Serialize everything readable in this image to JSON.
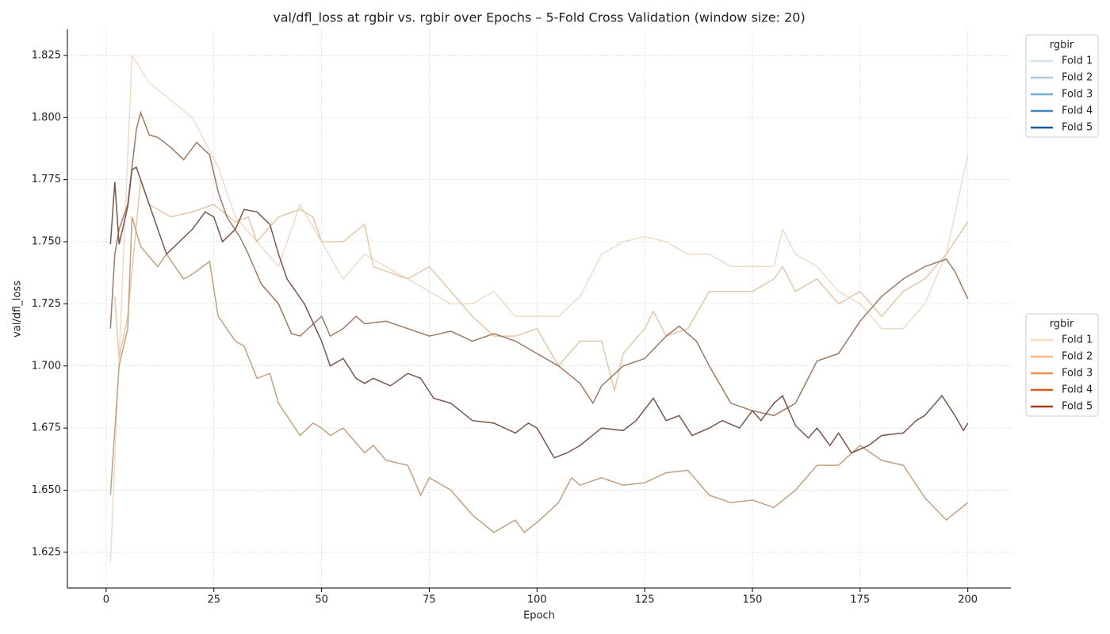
{
  "chart_data": {
    "type": "line",
    "title": "val/dfl_loss at rgbir vs. rgbir over Epochs – 5-Fold Cross Validation (window size: 20)",
    "x_label": "Epoch",
    "y_label": "val/dfl_loss",
    "xlim": [
      -9,
      210
    ],
    "ylim": [
      1.6106,
      1.8355
    ],
    "xticks": [
      0,
      25,
      50,
      75,
      100,
      125,
      150,
      175,
      200
    ],
    "yticks": [
      1.625,
      {
        "value": 1.65,
        "label": "1.650"
      },
      1.675,
      {
        "value": 1.7,
        "label": "1.700"
      },
      1.725,
      {
        "value": 1.75,
        "label": "1.750"
      },
      1.775,
      {
        "value": 1.8,
        "label": "1.800"
      },
      1.825
    ],
    "grid": true,
    "series": [
      {
        "color": "#efdcc8",
        "x": [
          1,
          6,
          10,
          20,
          26,
          30,
          35,
          40,
          45,
          50,
          55,
          60,
          65,
          70,
          75,
          80,
          85,
          90,
          95,
          100,
          105,
          110,
          115,
          120,
          125,
          130,
          135,
          140,
          145,
          150,
          155,
          157,
          160,
          165,
          170,
          175,
          180,
          185,
          190,
          195,
          200
        ],
        "values": [
          1.621,
          1.825,
          1.814,
          1.8,
          1.78,
          1.76,
          1.75,
          1.74,
          1.765,
          1.75,
          1.735,
          1.745,
          1.74,
          1.735,
          1.73,
          1.725,
          1.725,
          1.73,
          1.72,
          1.72,
          1.72,
          1.728,
          1.745,
          1.75,
          1.752,
          1.75,
          1.745,
          1.745,
          1.74,
          1.74,
          1.74,
          1.755,
          1.745,
          1.74,
          1.73,
          1.725,
          1.715,
          1.715,
          1.725,
          1.745,
          1.785
        ]
      },
      {
        "color": "#e3c8a8",
        "x": [
          2,
          3,
          5,
          8,
          10,
          15,
          20,
          25,
          30,
          33,
          35,
          40,
          45,
          48,
          50,
          55,
          60,
          62,
          70,
          75,
          80,
          85,
          90,
          95,
          100,
          105,
          110,
          115,
          118,
          120,
          125,
          127,
          130,
          135,
          140,
          145,
          150,
          155,
          157,
          160,
          165,
          170,
          175,
          180,
          185,
          190,
          195,
          200
        ],
        "values": [
          1.728,
          1.703,
          1.72,
          1.775,
          1.765,
          1.76,
          1.762,
          1.765,
          1.758,
          1.76,
          1.75,
          1.76,
          1.763,
          1.76,
          1.75,
          1.75,
          1.757,
          1.74,
          1.735,
          1.74,
          1.73,
          1.72,
          1.712,
          1.712,
          1.715,
          1.7,
          1.71,
          1.71,
          1.69,
          1.705,
          1.715,
          1.722,
          1.712,
          1.715,
          1.73,
          1.73,
          1.73,
          1.735,
          1.74,
          1.73,
          1.735,
          1.725,
          1.73,
          1.72,
          1.73,
          1.735,
          1.745,
          1.758
        ]
      },
      {
        "color": "#c4a080",
        "x": [
          1,
          3,
          5,
          6,
          8,
          12,
          14,
          18,
          20,
          24,
          26,
          30,
          32,
          35,
          38,
          40,
          45,
          48,
          50,
          52,
          55,
          60,
          62,
          65,
          70,
          73,
          75,
          80,
          85,
          90,
          95,
          97,
          100,
          105,
          108,
          110,
          115,
          120,
          125,
          130,
          135,
          140,
          145,
          150,
          155,
          160,
          165,
          170,
          175,
          180,
          185,
          190,
          195,
          200
        ],
        "values": [
          1.648,
          1.7,
          1.715,
          1.76,
          1.748,
          1.74,
          1.745,
          1.735,
          1.737,
          1.742,
          1.72,
          1.71,
          1.708,
          1.695,
          1.697,
          1.685,
          1.672,
          1.677,
          1.675,
          1.672,
          1.675,
          1.665,
          1.668,
          1.662,
          1.66,
          1.648,
          1.655,
          1.65,
          1.64,
          1.633,
          1.638,
          1.633,
          1.637,
          1.645,
          1.655,
          1.652,
          1.655,
          1.652,
          1.653,
          1.657,
          1.658,
          1.648,
          1.645,
          1.646,
          1.643,
          1.65,
          1.66,
          1.66,
          1.668,
          1.662,
          1.66,
          1.647,
          1.638,
          1.645
        ]
      },
      {
        "color": "#a07860",
        "x": [
          1,
          2,
          3,
          5,
          7,
          8,
          10,
          12,
          15,
          18,
          21,
          24,
          26,
          28,
          31,
          33,
          36,
          40,
          43,
          45,
          50,
          52,
          55,
          58,
          60,
          65,
          70,
          75,
          80,
          85,
          90,
          95,
          100,
          105,
          110,
          113,
          115,
          120,
          125,
          130,
          133,
          137,
          140,
          145,
          150,
          155,
          160,
          165,
          170,
          175,
          180,
          185,
          190,
          195,
          197,
          200
        ],
        "values": [
          1.715,
          1.745,
          1.755,
          1.765,
          1.795,
          1.802,
          1.793,
          1.792,
          1.788,
          1.783,
          1.79,
          1.785,
          1.77,
          1.76,
          1.752,
          1.745,
          1.733,
          1.725,
          1.713,
          1.712,
          1.72,
          1.712,
          1.715,
          1.72,
          1.717,
          1.718,
          1.715,
          1.712,
          1.714,
          1.71,
          1.713,
          1.71,
          1.705,
          1.7,
          1.693,
          1.685,
          1.692,
          1.7,
          1.703,
          1.712,
          1.716,
          1.71,
          1.7,
          1.685,
          1.682,
          1.68,
          1.685,
          1.702,
          1.705,
          1.718,
          1.728,
          1.735,
          1.74,
          1.743,
          1.738,
          1.727
        ]
      },
      {
        "color": "#7a5448",
        "x": [
          1,
          2,
          3,
          5,
          6,
          7,
          10,
          14,
          17,
          20,
          23,
          25,
          27,
          30,
          32,
          35,
          38,
          40,
          42,
          46,
          50,
          52,
          55,
          58,
          60,
          62,
          66,
          70,
          73,
          76,
          80,
          85,
          90,
          95,
          98,
          100,
          104,
          107,
          110,
          115,
          120,
          123,
          127,
          130,
          133,
          136,
          140,
          143,
          147,
          150,
          152,
          155,
          157,
          160,
          163,
          165,
          168,
          170,
          173,
          177,
          180,
          185,
          188,
          190,
          194,
          197,
          199,
          200
        ],
        "values": [
          1.749,
          1.774,
          1.749,
          1.764,
          1.779,
          1.78,
          1.765,
          1.745,
          1.75,
          1.755,
          1.762,
          1.76,
          1.75,
          1.755,
          1.763,
          1.762,
          1.757,
          1.745,
          1.735,
          1.725,
          1.71,
          1.7,
          1.703,
          1.695,
          1.693,
          1.695,
          1.692,
          1.697,
          1.695,
          1.687,
          1.685,
          1.678,
          1.677,
          1.673,
          1.677,
          1.675,
          1.663,
          1.665,
          1.668,
          1.675,
          1.674,
          1.678,
          1.687,
          1.678,
          1.68,
          1.672,
          1.675,
          1.678,
          1.675,
          1.682,
          1.678,
          1.685,
          1.688,
          1.676,
          1.671,
          1.675,
          1.668,
          1.673,
          1.665,
          1.668,
          1.672,
          1.673,
          1.678,
          1.68,
          1.688,
          1.68,
          1.674,
          1.677
        ]
      }
    ],
    "legends": [
      {
        "title": "rgbir",
        "entries": [
          {
            "name": "Fold 1",
            "color": "#d4e3f1"
          },
          {
            "name": "Fold 2",
            "color": "#a9cce3"
          },
          {
            "name": "Fold 3",
            "color": "#6eaed6"
          },
          {
            "name": "Fold 4",
            "color": "#3a86c0"
          },
          {
            "name": "Fold 5",
            "color": "#1b5a98"
          }
        ]
      },
      {
        "title": "rgbir",
        "entries": [
          {
            "name": "Fold 1",
            "color": "#f9dcc0"
          },
          {
            "name": "Fold 2",
            "color": "#fbb67c"
          },
          {
            "name": "Fold 3",
            "color": "#f78d44"
          },
          {
            "name": "Fold 4",
            "color": "#de5a16"
          },
          {
            "name": "Fold 5",
            "color": "#a53c0c"
          }
        ]
      }
    ]
  }
}
